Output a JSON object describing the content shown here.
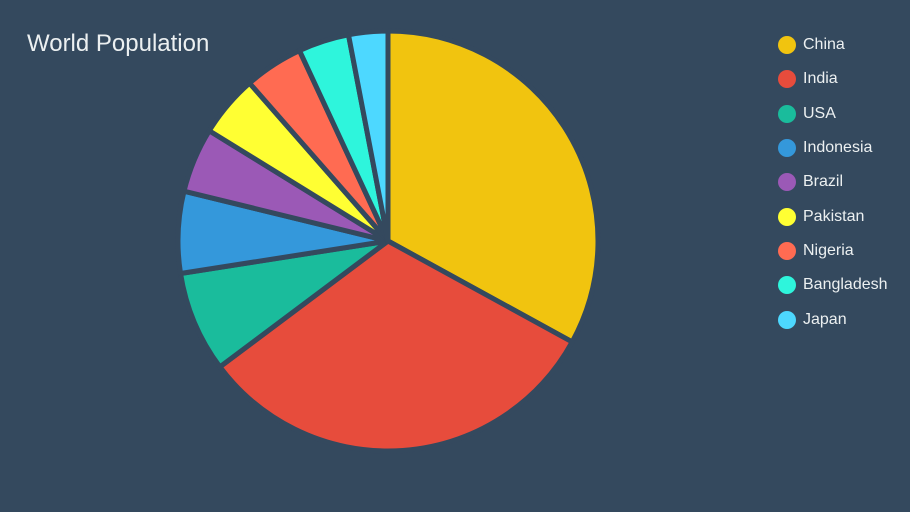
{
  "chart_data": {
    "type": "pie",
    "title": "World Population",
    "legend_position": "right",
    "background": "#34495e",
    "slice_border_color": "#34495e",
    "start_angle_deg": 0,
    "direction": "clockwise",
    "slices": [
      {
        "label": "China",
        "value": 1390,
        "color": "#f1c40f"
      },
      {
        "label": "India",
        "value": 1340,
        "color": "#e74c3c"
      },
      {
        "label": "USA",
        "value": 327,
        "color": "#1abc9c"
      },
      {
        "label": "Indonesia",
        "value": 265,
        "color": "#3498db"
      },
      {
        "label": "Brazil",
        "value": 210,
        "color": "#9b59b6"
      },
      {
        "label": "Pakistan",
        "value": 200,
        "color": "#ffff33"
      },
      {
        "label": "Nigeria",
        "value": 191,
        "color": "#ff6b52"
      },
      {
        "label": "Bangladesh",
        "value": 165,
        "color": "#2ef5dc"
      },
      {
        "label": "Japan",
        "value": 127,
        "color": "#4dd8ff"
      }
    ]
  }
}
